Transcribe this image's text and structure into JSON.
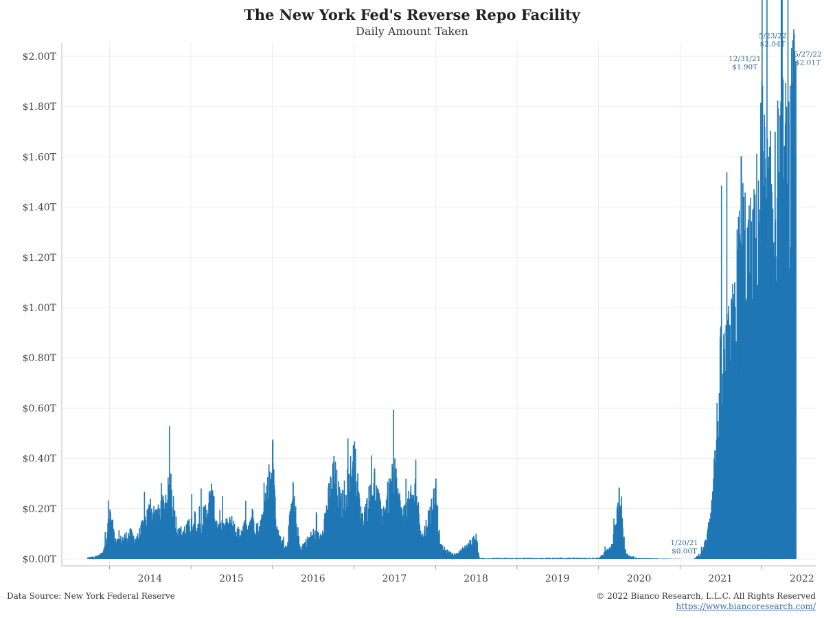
{
  "chart_data": {
    "type": "bar",
    "title": "The New York Fed's Reverse Repo Facility",
    "subtitle": "Daily Amount Taken",
    "xlabel": "",
    "ylabel": "",
    "x_ticks": [
      "2014",
      "2015",
      "2016",
      "2017",
      "2018",
      "2019",
      "2020",
      "2021",
      "2022"
    ],
    "y_ticks": [
      "$0.00T",
      "$0.20T",
      "$0.40T",
      "$0.60T",
      "$0.80T",
      "$1.00T",
      "$1.20T",
      "$1.40T",
      "$1.60T",
      "$1.80T",
      "$2.00T"
    ],
    "ylim": [
      0,
      2.1
    ],
    "xlim": [
      "2013-06-01",
      "2022-09-01"
    ],
    "grid": true,
    "bar_color": "#1f77b4",
    "series": [
      {
        "unit": "trillions USD",
        "anchors": [
          [
            "2013-09-23",
            0.005
          ],
          [
            "2013-11-01",
            0.01
          ],
          [
            "2013-12-01",
            0.03
          ],
          [
            "2013-12-31",
            0.197
          ],
          [
            "2014-02-01",
            0.08
          ],
          [
            "2014-03-31",
            0.12
          ],
          [
            "2014-05-01",
            0.09
          ],
          [
            "2014-06-30",
            0.24
          ],
          [
            "2014-08-01",
            0.2
          ],
          [
            "2014-09-30",
            0.34
          ],
          [
            "2014-11-01",
            0.12
          ],
          [
            "2014-12-31",
            0.16
          ],
          [
            "2015-01-15",
            0.19
          ],
          [
            "2015-02-01",
            0.14
          ],
          [
            "2015-03-31",
            0.3
          ],
          [
            "2015-05-01",
            0.14
          ],
          [
            "2015-06-30",
            0.17
          ],
          [
            "2015-08-01",
            0.12
          ],
          [
            "2015-09-30",
            0.2
          ],
          [
            "2015-11-01",
            0.13
          ],
          [
            "2015-12-31",
            0.475
          ],
          [
            "2016-01-20",
            0.12
          ],
          [
            "2016-03-01",
            0.05
          ],
          [
            "2016-03-31",
            0.3
          ],
          [
            "2016-05-01",
            0.05
          ],
          [
            "2016-06-30",
            0.12
          ],
          [
            "2016-08-01",
            0.1
          ],
          [
            "2016-09-30",
            0.41
          ],
          [
            "2016-11-01",
            0.25
          ],
          [
            "2016-12-31",
            0.468
          ],
          [
            "2017-02-01",
            0.18
          ],
          [
            "2017-03-31",
            0.36
          ],
          [
            "2017-05-01",
            0.2
          ],
          [
            "2017-06-30",
            0.4
          ],
          [
            "2017-08-01",
            0.2
          ],
          [
            "2017-09-30",
            0.32
          ],
          [
            "2017-11-01",
            0.1
          ],
          [
            "2017-12-31",
            0.32
          ],
          [
            "2018-01-20",
            0.06
          ],
          [
            "2018-03-01",
            0.03
          ],
          [
            "2018-03-31",
            0.02
          ],
          [
            "2018-06-29",
            0.1
          ],
          [
            "2018-07-15",
            0.003
          ],
          [
            "2019-12-31",
            0.004
          ],
          [
            "2020-03-01",
            0.06
          ],
          [
            "2020-03-31",
            0.284
          ],
          [
            "2020-05-01",
            0.02
          ],
          [
            "2020-06-15",
            0.003
          ],
          [
            "2021-01-20",
            0.0
          ],
          [
            "2021-03-01",
            0.0
          ],
          [
            "2021-03-31",
            0.02
          ],
          [
            "2021-04-30",
            0.1
          ],
          [
            "2021-05-31",
            0.4
          ],
          [
            "2021-06-30",
            0.9
          ],
          [
            "2021-07-31",
            0.95
          ],
          [
            "2021-08-31",
            1.1
          ],
          [
            "2021-09-30",
            1.6
          ],
          [
            "2021-10-31",
            1.35
          ],
          [
            "2021-11-30",
            1.45
          ],
          [
            "2021-12-31",
            1.904
          ],
          [
            "2022-01-31",
            1.6
          ],
          [
            "2022-02-28",
            1.7
          ],
          [
            "2022-03-31",
            1.87
          ],
          [
            "2022-04-30",
            1.82
          ],
          [
            "2022-05-23",
            2.04
          ],
          [
            "2022-05-27",
            2.01
          ],
          [
            "2022-06-01",
            1.98
          ]
        ]
      }
    ],
    "annotations": [
      {
        "date": "2021-12-31",
        "label1": "12/31/21",
        "label2": "$1.90T",
        "value": 1.904
      },
      {
        "date": "2022-05-23",
        "label1": "5/23/22",
        "label2": "$2.04T",
        "value": 2.04
      },
      {
        "date": "2022-05-27",
        "label1": "5/27/22",
        "label2": "$2.01T",
        "value": 2.01
      },
      {
        "date": "2021-01-20",
        "label1": "1/20/21",
        "label2": "$0.00T",
        "value": 0.0
      }
    ]
  },
  "footer": {
    "source": "Data Source: New York Federal Reserve",
    "copyright": "© 2022 Bianco Research, L.L.C. All Rights Reserved",
    "website": "https://www.biancoresearch.com/"
  }
}
